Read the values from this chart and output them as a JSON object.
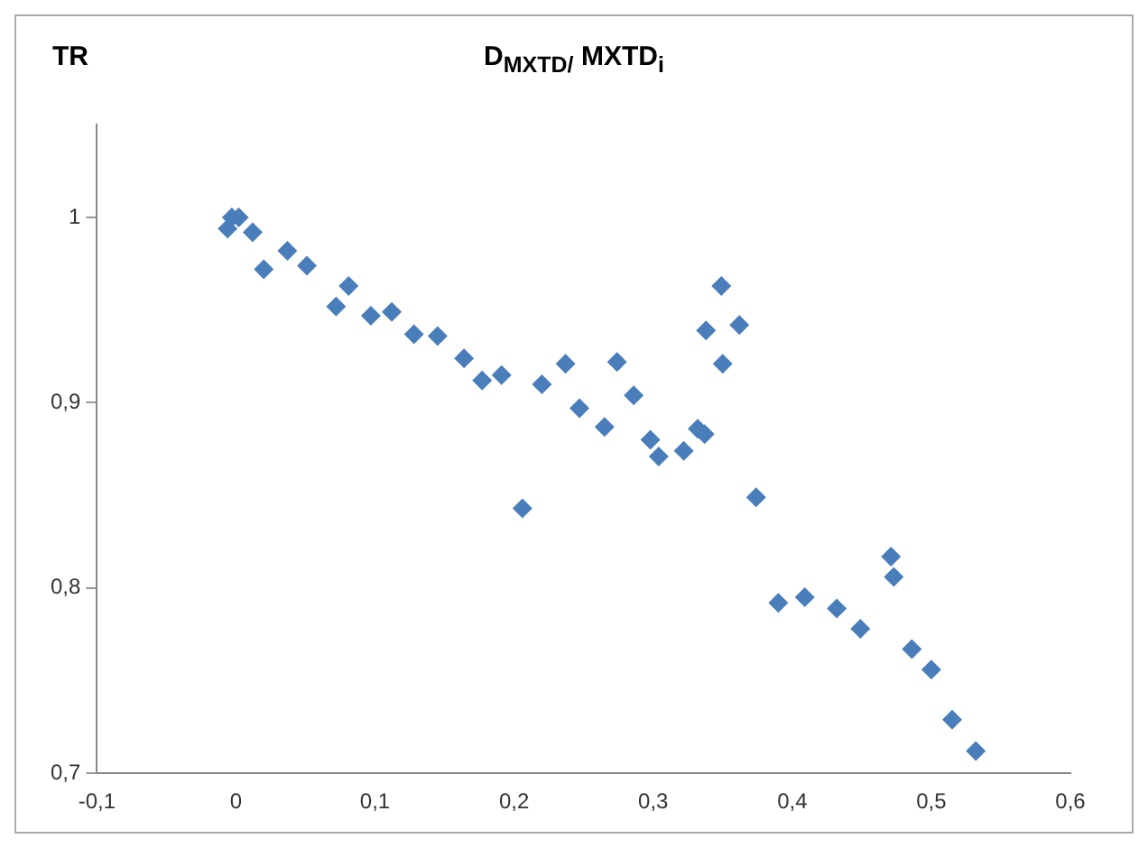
{
  "chart_data": {
    "type": "scatter",
    "title": "D$_{MXTD/}$ MXTD$_{i}$",
    "ylabel": "TR",
    "x": [
      -0.006,
      -0.003,
      0.002,
      0.012,
      0.02,
      0.037,
      0.051,
      0.072,
      0.081,
      0.097,
      0.112,
      0.128,
      0.145,
      0.164,
      0.177,
      0.191,
      0.206,
      0.22,
      0.237,
      0.247,
      0.265,
      0.274,
      0.286,
      0.298,
      0.304,
      0.322,
      0.332,
      0.337,
      0.338,
      0.349,
      0.35,
      0.362,
      0.374,
      0.39,
      0.409,
      0.432,
      0.449,
      0.471,
      0.473,
      0.486,
      0.5,
      0.515,
      0.532
    ],
    "series": [
      {
        "color": "#4a7ebb",
        "values": [
          0.994,
          1.0,
          1.0,
          0.992,
          0.972,
          0.982,
          0.974,
          0.952,
          0.963,
          0.947,
          0.949,
          0.937,
          0.936,
          0.924,
          0.912,
          0.915,
          0.843,
          0.91,
          0.921,
          0.897,
          0.887,
          0.922,
          0.904,
          0.88,
          0.871,
          0.874,
          0.886,
          0.883,
          0.939,
          0.963,
          0.921,
          0.942,
          0.849,
          0.792,
          0.795,
          0.789,
          0.778,
          0.817,
          0.806,
          0.767,
          0.756,
          0.729,
          0.712
        ]
      }
    ],
    "marker": "diamond",
    "xlim": [
      -0.1,
      0.6
    ],
    "xticks": [
      {
        "value": -0.1,
        "label": "-0,1"
      },
      0,
      {
        "value": 0.1,
        "label": "0,1"
      },
      {
        "value": 0.2,
        "label": "0,2"
      },
      {
        "value": 0.3,
        "label": "0,3"
      },
      {
        "value": 0.4,
        "label": "0,4"
      },
      {
        "value": 0.5,
        "label": "0,5"
      },
      {
        "value": 0.6,
        "label": "0,6"
      }
    ],
    "ylim": [
      0.7,
      1.05
    ],
    "yticks": [
      {
        "value": 0.7,
        "label": "0,7"
      },
      {
        "value": 0.8,
        "label": "0,8"
      },
      {
        "value": 0.9,
        "label": "0,9"
      },
      1
    ],
    "grid": false,
    "legend": false
  }
}
